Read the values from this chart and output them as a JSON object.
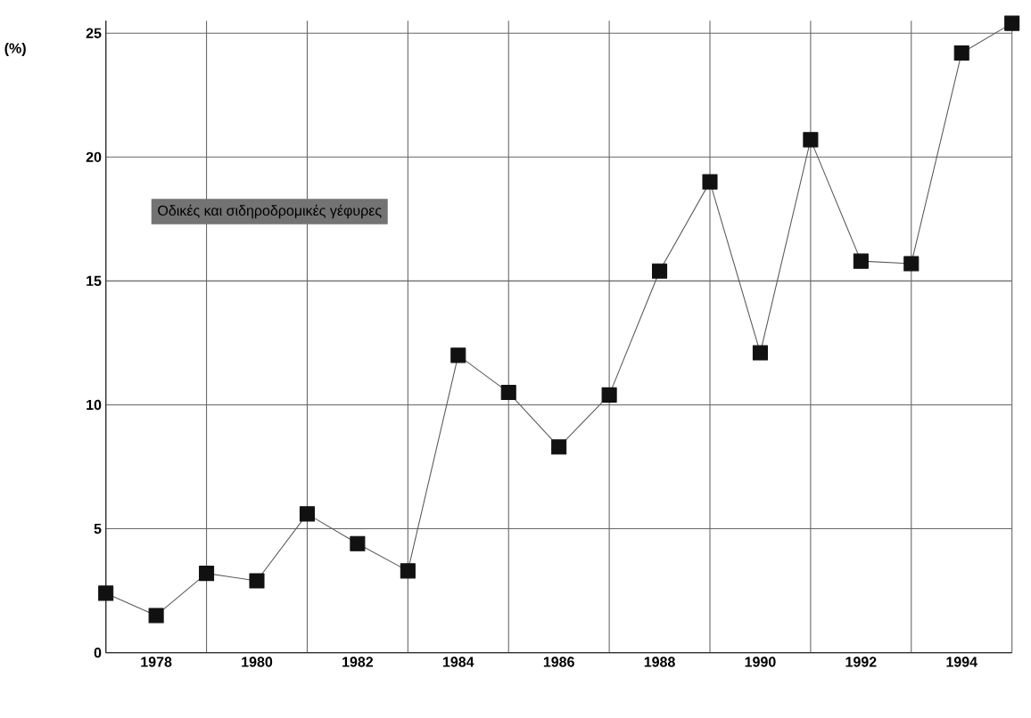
{
  "chart_data": {
    "type": "line",
    "ylabel": "(%)",
    "annotations": [
      "Οδικές και σιδηροδρομικές γέφυρες"
    ],
    "x": [
      1977,
      1978,
      1979,
      1980,
      1981,
      1982,
      1983,
      1984,
      1985,
      1986,
      1987,
      1988,
      1989,
      1990,
      1991,
      1992,
      1993,
      1994,
      1995
    ],
    "series": [
      {
        "color": "#111111",
        "values": [
          2.4,
          1.5,
          3.2,
          2.9,
          5.6,
          4.4,
          3.3,
          12.0,
          10.5,
          8.3,
          10.4,
          15.4,
          19.0,
          12.1,
          20.7,
          15.8,
          15.7,
          24.2,
          25.4
        ]
      }
    ],
    "xlim": [
      1977,
      1995
    ],
    "ylim": [
      0,
      25.5
    ],
    "xticks": [
      {
        "value": 1977,
        "label": null
      },
      1978,
      {
        "value": 1979,
        "label": null
      },
      1980,
      {
        "value": 1981,
        "label": null
      },
      1982,
      {
        "value": 1983,
        "label": null
      },
      1984,
      {
        "value": 1985,
        "label": null
      },
      1986,
      {
        "value": 1987,
        "label": null
      },
      1988,
      {
        "value": 1989,
        "label": null
      },
      1990,
      {
        "value": 1991,
        "label": null
      },
      1992,
      {
        "value": 1993,
        "label": null
      },
      1994,
      {
        "value": 1995,
        "label": null
      }
    ],
    "yticks": [
      0,
      5,
      10,
      15,
      20,
      25
    ],
    "grid": true,
    "marker": "square",
    "line_style": "solid"
  }
}
